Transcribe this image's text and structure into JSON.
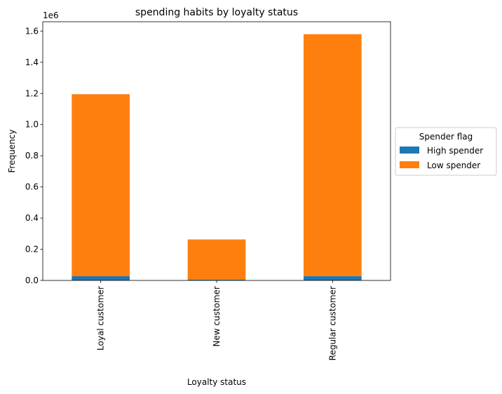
{
  "chart_data": {
    "type": "bar",
    "stacked": true,
    "title": "spending habits by loyalty status",
    "xlabel": "Loyalty status",
    "ylabel": "Frequency",
    "y_offset_label": "1e6",
    "categories": [
      "Loyal customer",
      "New customer",
      "Regular customer"
    ],
    "series": [
      {
        "name": "High spender",
        "color": "#1f77b4",
        "values": [
          27000,
          5000,
          28000
        ]
      },
      {
        "name": "Low spender",
        "color": "#ff7f0e",
        "values": [
          1168000,
          258000,
          1552000
        ]
      }
    ],
    "ylim": [
      0,
      1660000
    ],
    "yticks": [
      0,
      200000,
      400000,
      600000,
      800000,
      1000000,
      1200000,
      1400000,
      1600000
    ],
    "ytick_labels": [
      "0.0",
      "0.2",
      "0.4",
      "0.6",
      "0.8",
      "1.0",
      "1.2",
      "1.4",
      "1.6"
    ],
    "legend": {
      "title": "Spender flag",
      "placement": "center-right outside"
    },
    "grid": false
  }
}
